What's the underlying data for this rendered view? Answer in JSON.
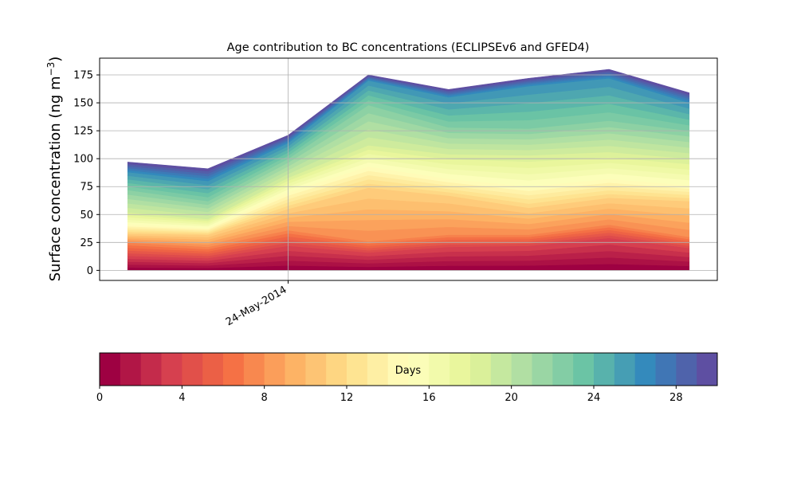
{
  "chart_data": {
    "type": "area",
    "title": "Age contribution to BC concentrations (ECLIPSEv6 and GFED4)",
    "ylabel_main": "Surface concentration (ng m",
    "ylabel_sup": "−3",
    "ylabel_close": ")",
    "x_tick_label": "24-May-2014",
    "y_ticks": [
      0,
      25,
      50,
      75,
      100,
      125,
      150,
      175
    ],
    "ylim": [
      -9,
      190
    ],
    "x": [
      0,
      1,
      2,
      3,
      4,
      5,
      6,
      7
    ],
    "xlim": [
      -0.35,
      7.35
    ],
    "x_tick_position": 2,
    "grid": true,
    "bands_per_segment": 5,
    "cumulative_anchors": [
      [
        0,
        0,
        0,
        0,
        0,
        0,
        0,
        0
      ],
      [
        13,
        11,
        22,
        16,
        21,
        22,
        29,
        20
      ],
      [
        25,
        21,
        36,
        26,
        32,
        32,
        41,
        30
      ],
      [
        33,
        32,
        55,
        74,
        67,
        56,
        65,
        62
      ],
      [
        41,
        38,
        70,
        93,
        82,
        75,
        82,
        76
      ],
      [
        52,
        46,
        83,
        112,
        104,
        103,
        106,
        100
      ],
      [
        72,
        62,
        100,
        148,
        128,
        127,
        134,
        125
      ],
      [
        88,
        80,
        114,
        170,
        155,
        165,
        172,
        150
      ],
      [
        97,
        91,
        121,
        175,
        162,
        172,
        180,
        159
      ]
    ],
    "colorbar": {
      "label": "Days",
      "ticks": [
        0,
        4,
        8,
        12,
        16,
        20,
        24,
        28
      ],
      "min": 0,
      "max": 30,
      "n_bins": 30,
      "colormap": "Spectral"
    },
    "colormap_stops": [
      "#9e0142",
      "#d53e4f",
      "#f46d43",
      "#fdae61",
      "#fee08b",
      "#ffffbf",
      "#e6f598",
      "#abdda4",
      "#66c2a5",
      "#3288bd",
      "#5e4fa2"
    ]
  }
}
